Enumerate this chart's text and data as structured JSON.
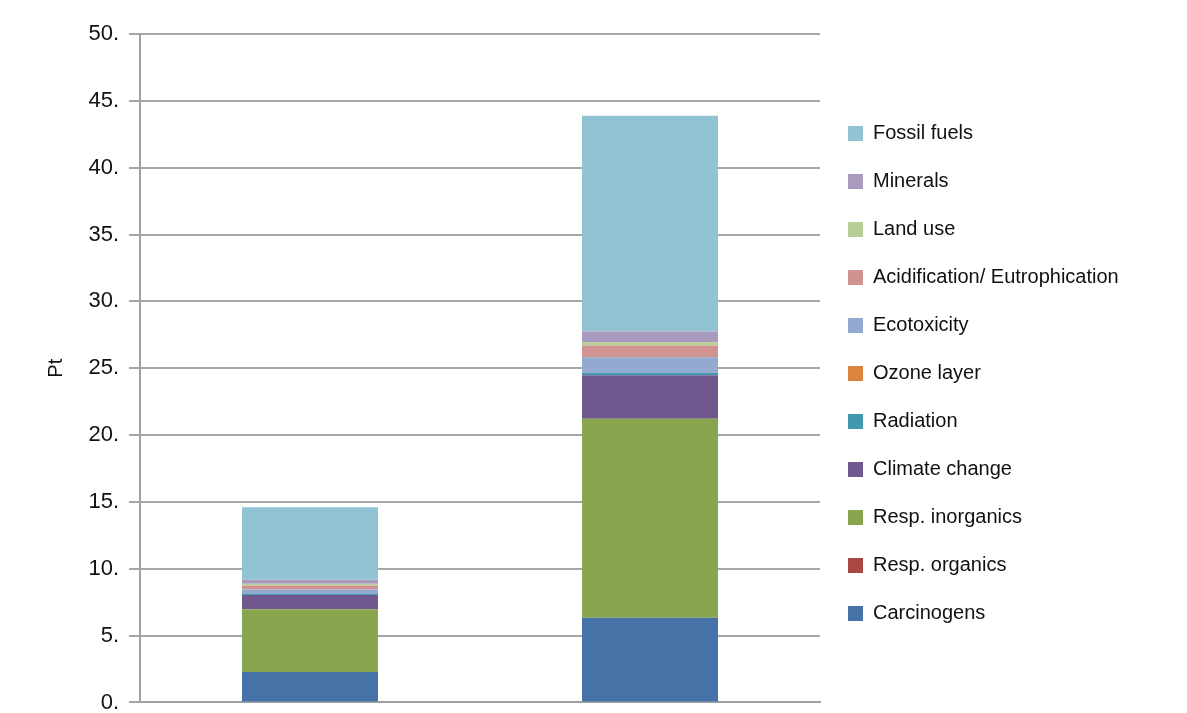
{
  "chart_data": {
    "type": "bar",
    "stacked": true,
    "categories": [
      null,
      null
    ],
    "ylabel": "Pt",
    "ylim": [
      0,
      50
    ],
    "yticks": [
      {
        "value": 0,
        "label": "0."
      },
      {
        "value": 5,
        "label": "5."
      },
      {
        "value": 10,
        "label": "10."
      },
      {
        "value": 15,
        "label": "15."
      },
      {
        "value": 20,
        "label": "20."
      },
      {
        "value": 25,
        "label": "25."
      },
      {
        "value": 30,
        "label": "30."
      },
      {
        "value": 35,
        "label": "35."
      },
      {
        "value": 40,
        "label": "40."
      },
      {
        "value": 45,
        "label": "45."
      },
      {
        "value": 50,
        "label": "50."
      }
    ],
    "grid": "y",
    "legend": "right",
    "series": [
      {
        "name": "Carcinogens",
        "color": "#4573a7",
        "values": [
          2.27,
          6.33
        ]
      },
      {
        "name": "Resp. organics",
        "color": "#aa4643",
        "values": [
          0,
          0
        ]
      },
      {
        "name": "Resp. inorganics",
        "color": "#89a54e",
        "values": [
          4.71,
          14.9
        ]
      },
      {
        "name": "Climate change",
        "color": "#71588f",
        "values": [
          1.05,
          3.24
        ]
      },
      {
        "name": "Radiation",
        "color": "#4198af",
        "values": [
          0.1,
          0.2
        ]
      },
      {
        "name": "Ozone layer",
        "color": "#db843d",
        "values": [
          0,
          0
        ]
      },
      {
        "name": "Ecotoxicity",
        "color": "#93a9cf",
        "values": [
          0.32,
          1.15
        ]
      },
      {
        "name": "Acidification/ Eutrophication",
        "color": "#d19392",
        "values": [
          0.3,
          0.87
        ]
      },
      {
        "name": "Land use",
        "color": "#b9cd96",
        "values": [
          0.12,
          0.25
        ]
      },
      {
        "name": "Minerals",
        "color": "#a99bbd",
        "values": [
          0.3,
          0.8
        ]
      },
      {
        "name": "Fossil fuels",
        "color": "#92c3d5",
        "values": [
          5.43,
          16.14
        ]
      }
    ]
  }
}
